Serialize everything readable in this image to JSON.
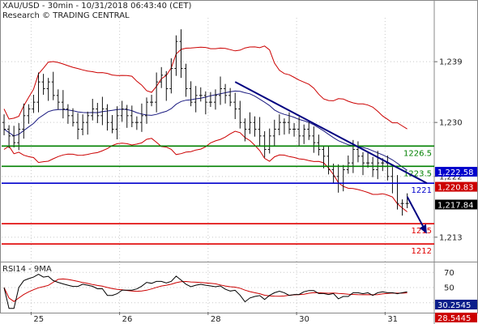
{
  "header": {
    "title": "XAU/USD - 30min - 10/31/2018 06:43:40 (CET)",
    "subtitle": "Research © TRADING CENTRAL"
  },
  "rsi_panel": {
    "title": "RSI14 - 9MA",
    "labels": [
      "70",
      "50",
      "30"
    ],
    "last_rsi": "30.2545",
    "last_ma": "28.5445"
  },
  "colors": {
    "candle": "#111111",
    "bollinger": "#cc0000",
    "moving_average": "#1a1a80",
    "support": "#e00000",
    "resistance": "#008000",
    "pivot": "#0000cc",
    "trendline": "#000080",
    "rsi_line": "#000000",
    "rsi_ma": "#cc0000"
  },
  "chart_data": {
    "type": "candlestick",
    "instrument": "XAU/USD",
    "timeframe": "30min",
    "y_axis_ticks": [
      "1,239",
      "1,230",
      "1,222",
      "1,213"
    ],
    "y_axis_values": [
      1239,
      1230,
      1222,
      1213
    ],
    "ylim": [
      1209.5,
      1245.5
    ],
    "x_axis_ticks": [
      "25",
      "26",
      "28",
      "30",
      "31"
    ],
    "x_tick_index": [
      6,
      24,
      42,
      60,
      78
    ],
    "closes": [
      1229,
      1228,
      1227,
      1229,
      1231,
      1232,
      1233,
      1236,
      1235,
      1236,
      1234,
      1233,
      1232,
      1231,
      1230,
      1229,
      1230,
      1231,
      1232,
      1231,
      1232,
      1230,
      1229,
      1231,
      1232,
      1231,
      1230,
      1230,
      1231,
      1233,
      1233,
      1236,
      1237,
      1235,
      1238,
      1242,
      1238,
      1235,
      1233,
      1234,
      1234,
      1233,
      1233,
      1234,
      1235,
      1234,
      1233,
      1232,
      1230,
      1229,
      1230,
      1229,
      1228,
      1226,
      1228,
      1229,
      1230,
      1230,
      1229,
      1229,
      1228,
      1229,
      1228,
      1227,
      1226,
      1225,
      1223,
      1222,
      1221,
      1223,
      1224,
      1226,
      1225,
      1224,
      1224,
      1223,
      1224,
      1224,
      1222,
      1221,
      1218,
      1218,
      1218
    ],
    "levels": [
      {
        "label": "1226.5",
        "value": 1226.5,
        "kind": "resistance"
      },
      {
        "label": "1223.5",
        "value": 1223.5,
        "kind": "resistance"
      },
      {
        "label": "1221",
        "value": 1221,
        "kind": "pivot"
      },
      {
        "label": "1215",
        "value": 1215,
        "kind": "support"
      },
      {
        "label": "1212",
        "value": 1212,
        "kind": "support"
      }
    ],
    "price_tags": [
      {
        "label": "1,222.58",
        "value": 1222.58,
        "color": "#0000cc"
      },
      {
        "label": "1,220.83",
        "value": 1220.83,
        "color": "#cc0000"
      },
      {
        "label": "1,217.84",
        "value": 1217.84,
        "color": "#000000"
      }
    ],
    "trendline": {
      "from": [
        47,
        1236
      ],
      "to": [
        86,
        1221
      ]
    },
    "forecast_arrow": {
      "from": [
        82,
        1219
      ],
      "to": [
        86,
        1213.5
      ]
    }
  }
}
